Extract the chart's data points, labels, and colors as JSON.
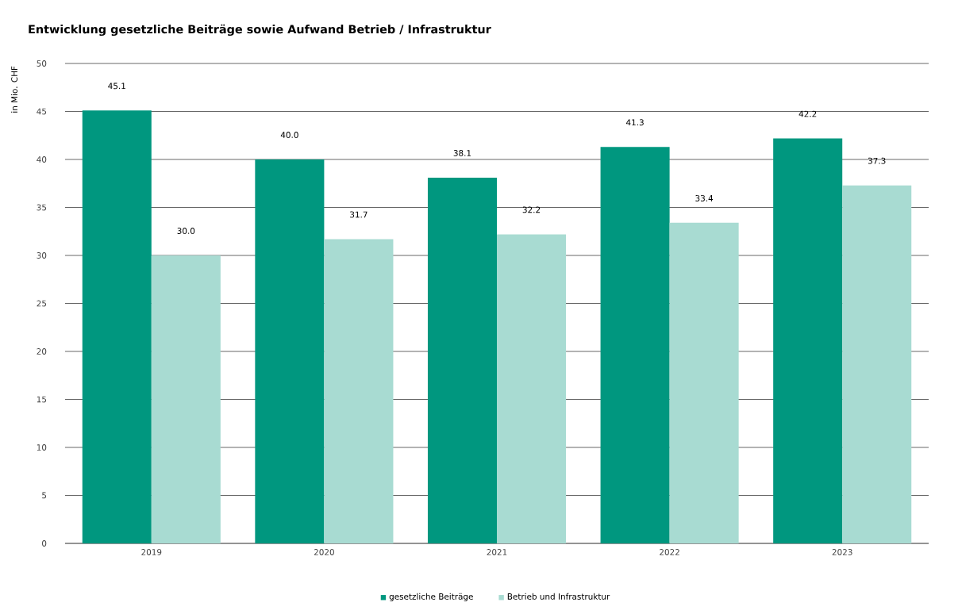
{
  "chart_data": {
    "type": "bar",
    "title": "Entwicklung gesetzliche Beiträge sowie Aufwand Betrieb / Infrastruktur",
    "ylabel": "in Mio. CHF",
    "categories": [
      "2019",
      "2020",
      "2021",
      "2022",
      "2023"
    ],
    "series": [
      {
        "name": "gesetzliche Beiträge",
        "color": "#00977f",
        "values": [
          45.1,
          40.0,
          38.1,
          41.3,
          42.2
        ],
        "value_labels": [
          "45.1",
          "40.0",
          "38.1",
          "41.3",
          "42.2"
        ]
      },
      {
        "name": "Betrieb und Infrastruktur",
        "color": "#a8dbd2",
        "values": [
          30.0,
          31.7,
          32.2,
          33.4,
          37.3
        ],
        "value_labels": [
          "30.0",
          "31.7",
          "32.2",
          "33.4",
          "37.3"
        ]
      }
    ],
    "ylim": [
      0,
      50
    ],
    "yticks": [
      0,
      5,
      10,
      15,
      20,
      25,
      30,
      35,
      40,
      45,
      50
    ],
    "grid": "y",
    "legend": "bottom"
  }
}
